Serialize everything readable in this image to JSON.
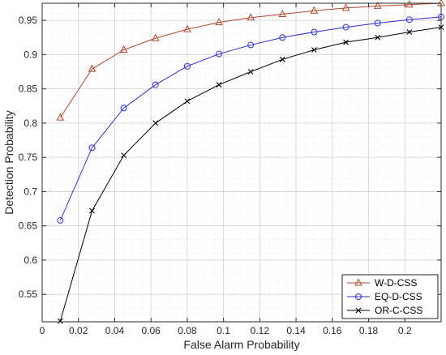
{
  "chart_data": {
    "type": "line",
    "title": "",
    "xlabel": "False Alarm Probability",
    "ylabel": "Detection Probability",
    "xlim": [
      0,
      0.22
    ],
    "ylim": [
      0.51,
      0.975
    ],
    "xticks": [
      0,
      0.02,
      0.04,
      0.06,
      0.08,
      0.1,
      0.12,
      0.14,
      0.16,
      0.18,
      0.2
    ],
    "xtick_labels": [
      "0",
      "0.02",
      "0.04",
      "0.06",
      "0.08",
      "0.1",
      "0.12",
      "0.14",
      "0.16",
      "0.18",
      "0.2"
    ],
    "yticks": [
      0.55,
      0.6,
      0.65,
      0.7,
      0.75,
      0.8,
      0.85,
      0.9,
      0.95
    ],
    "ytick_labels": [
      "0.55",
      "0.6",
      "0.65",
      "0.7",
      "0.75",
      "0.8",
      "0.85",
      "0.9",
      "0.95"
    ],
    "grid": true,
    "legend_position": "bottom-right",
    "x": [
      0.01,
      0.0275,
      0.045,
      0.0625,
      0.08,
      0.0975,
      0.115,
      0.1325,
      0.15,
      0.1675,
      0.185,
      0.2025,
      0.22
    ],
    "series": [
      {
        "name": "W-D-CSS",
        "color": "#b5452c",
        "marker": "triangle",
        "values": [
          0.808,
          0.879,
          0.907,
          0.924,
          0.937,
          0.947,
          0.954,
          0.959,
          0.964,
          0.968,
          0.971,
          0.973,
          0.975
        ]
      },
      {
        "name": "EQ-D-CSS",
        "color": "#2d2fd6",
        "marker": "circle",
        "values": [
          0.658,
          0.764,
          0.822,
          0.856,
          0.883,
          0.901,
          0.914,
          0.925,
          0.933,
          0.94,
          0.946,
          0.951,
          0.955
        ]
      },
      {
        "name": "OR-C-CSS",
        "color": "#000000",
        "marker": "x",
        "values": [
          0.511,
          0.672,
          0.753,
          0.8,
          0.832,
          0.856,
          0.875,
          0.893,
          0.907,
          0.918,
          0.925,
          0.933,
          0.94
        ]
      }
    ]
  }
}
